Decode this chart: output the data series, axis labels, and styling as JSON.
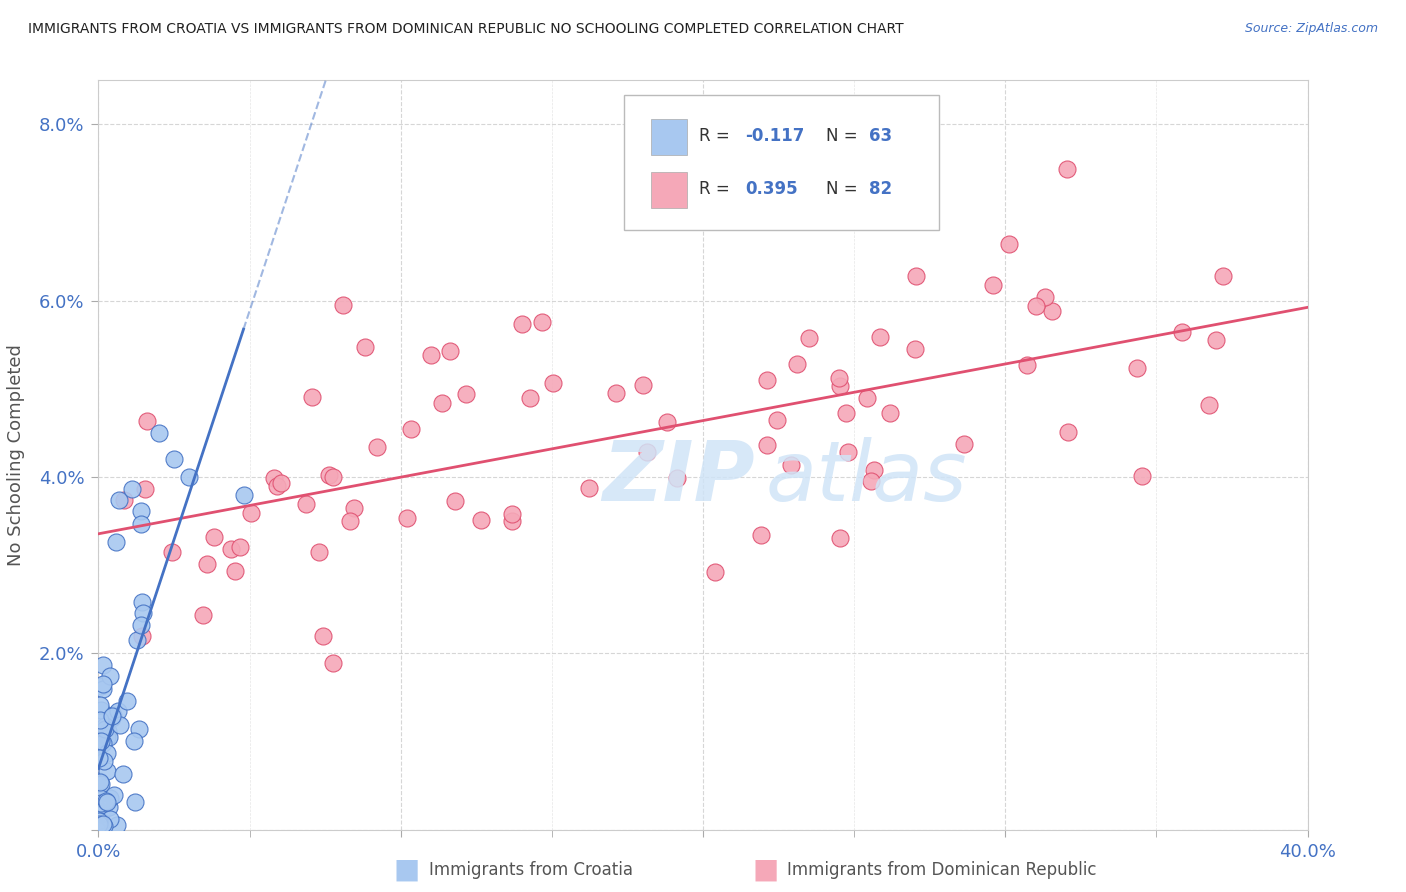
{
  "title": "IMMIGRANTS FROM CROATIA VS IMMIGRANTS FROM DOMINICAN REPUBLIC NO SCHOOLING COMPLETED CORRELATION CHART",
  "source": "Source: ZipAtlas.com",
  "xlabel_croatia": "Immigrants from Croatia",
  "xlabel_dr": "Immigrants from Dominican Republic",
  "ylabel": "No Schooling Completed",
  "x_min": 0.0,
  "x_max": 0.4,
  "y_min": 0.0,
  "y_max": 0.085,
  "croatia_color": "#a8c8f0",
  "dr_color": "#f5a8b8",
  "croatia_R": -0.117,
  "croatia_N": 63,
  "dr_R": 0.395,
  "dr_N": 82,
  "croatia_line_color": "#4472c4",
  "dr_line_color": "#e05070",
  "title_color": "#222222",
  "source_color": "#4472c4",
  "tick_color": "#4472c4",
  "ylabel_color": "#555555",
  "grid_color": "#cccccc",
  "watermark_color": "#d0e4f7",
  "legend_text_color": "#333333",
  "legend_value_color": "#4472c4"
}
